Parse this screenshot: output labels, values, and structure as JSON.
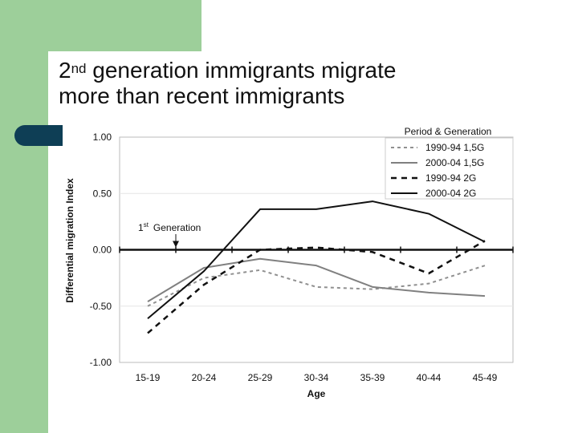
{
  "slide": {
    "title_sup_part": "nd",
    "title_prefix": "2",
    "title_line1_rest": " generation immigrants migrate",
    "title_line2": "more than recent immigrants"
  },
  "chart_data": {
    "type": "line",
    "title": "",
    "xlabel": "Age",
    "ylabel": "Differential migration Index",
    "ylim": [
      -1.0,
      1.0
    ],
    "yticks": [
      "1.00",
      "0.50",
      "0.00",
      "-0.50",
      "-1.00"
    ],
    "ytick_values": [
      1.0,
      0.5,
      0.0,
      -0.5,
      -1.0
    ],
    "categories": [
      "15-19",
      "20-24",
      "25-29",
      "30-34",
      "35-39",
      "40-44",
      "45-49"
    ],
    "legend_title": "Period & Generation",
    "legend_position": "top-right",
    "reference_line": {
      "value": 0.0,
      "label_prefix": "1",
      "label_sup": "st",
      "label_rest": "Generation"
    },
    "series": [
      {
        "name": "1990-94 1,5G",
        "color": "#909090",
        "dash": "short",
        "width": 2,
        "values": [
          -0.5,
          -0.25,
          -0.18,
          -0.33,
          -0.35,
          -0.3,
          -0.14
        ]
      },
      {
        "name": "2000-04 1,5G",
        "color": "#808080",
        "dash": "solid",
        "width": 2,
        "values": [
          -0.46,
          -0.16,
          -0.08,
          -0.14,
          -0.33,
          -0.38,
          -0.41
        ]
      },
      {
        "name": "1990-94 2G",
        "color": "#111111",
        "dash": "long",
        "width": 2.5,
        "values": [
          -0.74,
          -0.31,
          0.0,
          0.02,
          -0.02,
          -0.21,
          0.08
        ]
      },
      {
        "name": "2000-04 2G",
        "color": "#111111",
        "dash": "solid",
        "width": 2,
        "values": [
          -0.61,
          -0.19,
          0.36,
          0.36,
          0.43,
          0.32,
          0.07
        ]
      }
    ]
  }
}
